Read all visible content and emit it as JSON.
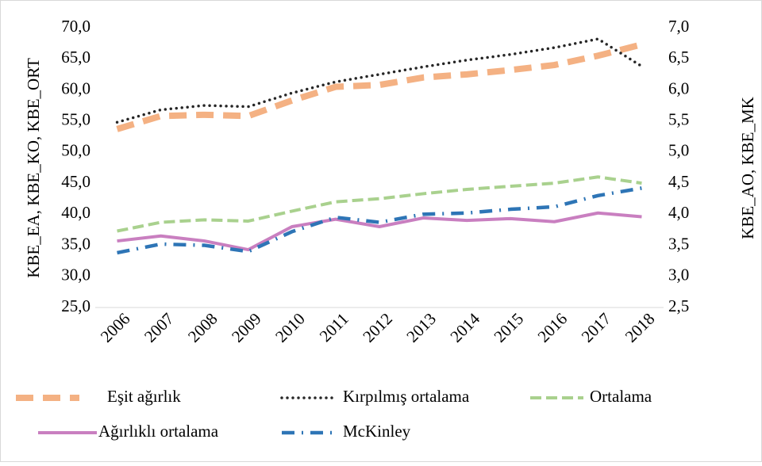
{
  "chart_data": {
    "type": "line",
    "categories": [
      "2006",
      "2007",
      "2008",
      "2009",
      "2010",
      "2011",
      "2012",
      "2013",
      "2014",
      "2015",
      "2016",
      "2017",
      "2018"
    ],
    "ylabel": "KBE_EA, KBE_KO, KBE_ORT",
    "y2label": "KBE_AO, KBE_MK",
    "ylim": [
      25,
      70
    ],
    "yticks": [
      {
        "value": 25,
        "label": "25,0"
      },
      {
        "value": 30,
        "label": "30,0"
      },
      {
        "value": 35,
        "label": "35,0"
      },
      {
        "value": 40,
        "label": "40,0"
      },
      {
        "value": 45,
        "label": "45,0"
      },
      {
        "value": 50,
        "label": "50,0"
      },
      {
        "value": 55,
        "label": "55,0"
      },
      {
        "value": 60,
        "label": "60,0"
      },
      {
        "value": 65,
        "label": "65,0"
      },
      {
        "value": 70,
        "label": "70,0"
      }
    ],
    "y2lim": [
      2.5,
      7.0
    ],
    "y2ticks": [
      {
        "value": 2.5,
        "label": "2,5"
      },
      {
        "value": 3.0,
        "label": "3,0"
      },
      {
        "value": 3.5,
        "label": "3,5"
      },
      {
        "value": 4.0,
        "label": "4,0"
      },
      {
        "value": 4.5,
        "label": "4,5"
      },
      {
        "value": 5.0,
        "label": "5,0"
      },
      {
        "value": 5.5,
        "label": "5,5"
      },
      {
        "value": 6.0,
        "label": "6,0"
      },
      {
        "value": 6.5,
        "label": "6,5"
      },
      {
        "value": 7.0,
        "label": "7,0"
      }
    ],
    "legend": "bottom",
    "series": [
      {
        "name": "Eşit ağırlık",
        "color": "#f4b183",
        "line_style": "long-dash",
        "axis": "y",
        "values": [
          53.7,
          55.8,
          56.0,
          55.8,
          58.3,
          60.5,
          60.8,
          62.0,
          62.5,
          63.2,
          64.0,
          65.5,
          67.3
        ]
      },
      {
        "name": "Kırpılmış ortalama",
        "color": "#262626",
        "line_style": "dot",
        "axis": "y",
        "values": [
          54.8,
          56.8,
          57.5,
          57.3,
          59.5,
          61.3,
          62.5,
          63.7,
          64.8,
          65.7,
          66.8,
          68.2,
          63.8
        ]
      },
      {
        "name": "Ortalama",
        "color": "#a9d18e",
        "line_style": "dash",
        "axis": "y",
        "values": [
          37.3,
          38.7,
          39.1,
          38.9,
          40.5,
          42.0,
          42.5,
          43.3,
          44.0,
          44.5,
          45.0,
          46.0,
          45.0
        ]
      },
      {
        "name": "Ağırlıklı ortalama",
        "color": "#c97fc0",
        "line_style": "solid",
        "axis": "y2",
        "values": [
          3.57,
          3.65,
          3.57,
          3.43,
          3.8,
          3.92,
          3.8,
          3.94,
          3.9,
          3.93,
          3.88,
          4.02,
          3.96
        ]
      },
      {
        "name": "McKinley",
        "color": "#2e75b6",
        "line_style": "dash-dot",
        "axis": "y2",
        "values": [
          3.38,
          3.52,
          3.5,
          3.4,
          3.72,
          3.95,
          3.87,
          4.0,
          4.02,
          4.08,
          4.12,
          4.3,
          4.42
        ]
      }
    ]
  }
}
